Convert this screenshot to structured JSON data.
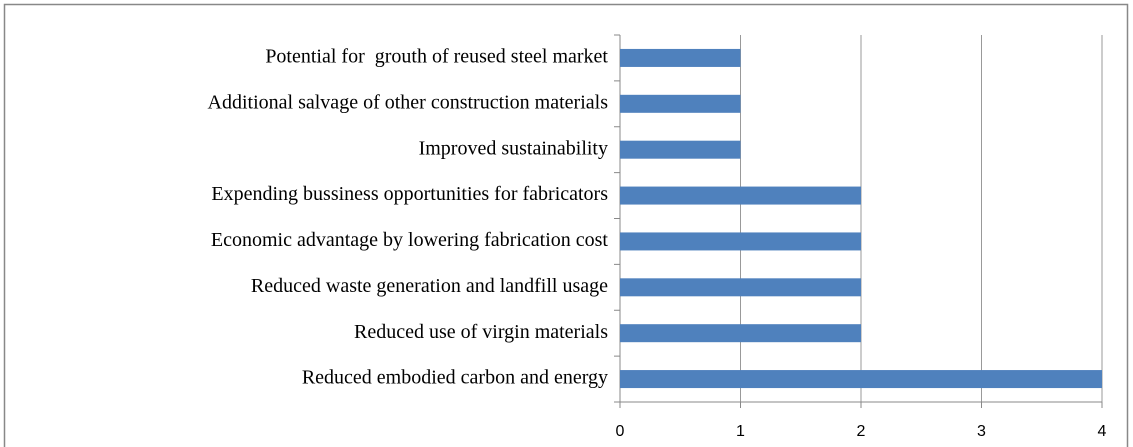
{
  "chart_data": {
    "type": "hbar",
    "categories": [
      "Potential for  grouth of reused steel market",
      "Additional salvage of other construction materials",
      "Improved sustainability",
      "Expending bussiness opportunities for fabricators",
      "Economic advantage by lowering fabrication cost",
      "Reduced waste generation and landfill usage",
      "Reduced use of virgin materials",
      "Reduced embodied carbon and energy"
    ],
    "values": [
      1,
      1,
      1,
      2,
      2,
      2,
      2,
      4
    ],
    "color": "#4f81bd",
    "xlim": [
      0,
      4
    ],
    "xticks": [
      0,
      1,
      2,
      3,
      4
    ],
    "grid": true
  }
}
